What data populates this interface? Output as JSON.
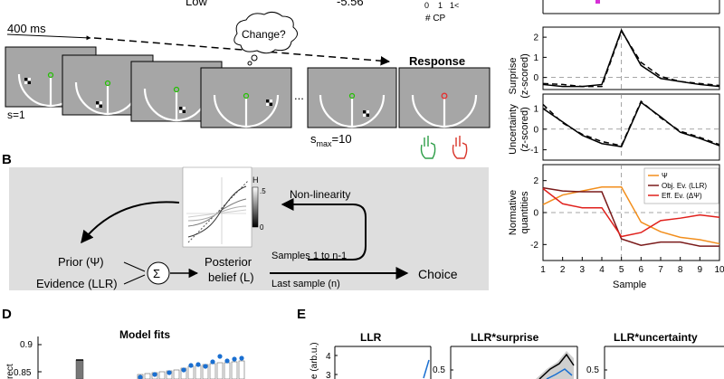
{
  "top_strip": {
    "low_label": "Low",
    "value_label": "-5.56",
    "cp_ticks": [
      "0",
      "1",
      "1<"
    ],
    "cp_label": "# CP"
  },
  "panel_a": {
    "time_label": "400 ms",
    "thought": "Change?",
    "response_label": "Response",
    "s_first": "s=1",
    "s_max_prefix": "s",
    "s_max_sub": "max",
    "s_max_suffix": "=10",
    "ellipsis": "...",
    "colors": {
      "gray_screen": "#a6a6a6",
      "green_hand": "#2e9e48",
      "red_hand": "#d9362b"
    }
  },
  "panel_b": {
    "label": "B",
    "colorbar_top": "H",
    "colorbar_tick_hi": ".5",
    "colorbar_tick_lo": "0",
    "nonlinearity": "Non-linearity",
    "prior": "Prior (Ψ)",
    "evidence": "Evidence (LLR)",
    "sum": "Σ",
    "posterior_line1": "Posterior",
    "posterior_line2": "belief (L)",
    "samples_label": "Samples 1 to n-1",
    "last_sample": "Last sample (n)",
    "choice": "Choice"
  },
  "panel_c": {
    "surprise_ylabel_1": "Surprise",
    "surprise_ylabel_2": "(z-scored)",
    "uncertainty_ylabel_1": "Uncertainty",
    "uncertainty_ylabel_2": "(z-scored)",
    "normative_ylabel_1": "Normative",
    "normative_ylabel_2": "quantities",
    "xlabel": "Sample",
    "legend": [
      "Ψ",
      "Obj. Ev. (LLR)",
      "Eff. Ev. (ΔΨ)"
    ]
  },
  "panel_d": {
    "label": "D",
    "title": "Model fits",
    "ylabel_fragment": "rect",
    "yticks": [
      "0.9",
      "0.85"
    ]
  },
  "panel_e": {
    "label": "E",
    "titles": [
      "LLR",
      "LLR*surprise",
      "LLR*uncertainty"
    ],
    "ylabel_fragment": "e (arb.u.)",
    "ticks_1": [
      "4",
      "3"
    ],
    "ticks_2": [
      "0.5"
    ],
    "ticks_3": [
      "0.5"
    ]
  },
  "chart_data": [
    {
      "type": "line",
      "title": "",
      "xlabel": "",
      "ylabel": "Surprise (z-scored)",
      "x": [
        1,
        2,
        3,
        4,
        5,
        6,
        7,
        8,
        9,
        10
      ],
      "xlim": [
        1,
        10
      ],
      "ylim": [
        -0.6,
        2.5
      ],
      "yticks": [
        0,
        1,
        2
      ],
      "series": [
        {
          "values": [
            -0.35,
            -0.45,
            -0.45,
            -0.35,
            2.35,
            0.6,
            -0.05,
            -0.2,
            -0.35,
            -0.45
          ],
          "style": "solid"
        },
        {
          "values": [
            -0.3,
            -0.35,
            -0.45,
            -0.45,
            2.3,
            0.75,
            0.05,
            -0.2,
            -0.3,
            -0.4
          ],
          "style": "dashed"
        }
      ]
    },
    {
      "type": "line",
      "title": "",
      "xlabel": "",
      "ylabel": "Uncertainty (z-scored)",
      "x": [
        1,
        2,
        3,
        4,
        5,
        6,
        7,
        8,
        9,
        10
      ],
      "xlim": [
        1,
        10
      ],
      "ylim": [
        -1.5,
        1.7
      ],
      "yticks": [
        -1,
        0,
        1
      ],
      "series": [
        {
          "values": [
            1.0,
            0.35,
            -0.3,
            -0.7,
            -0.85,
            1.3,
            0.6,
            -0.15,
            -0.45,
            -0.8
          ],
          "style": "solid"
        },
        {
          "values": [
            1.2,
            0.3,
            -0.25,
            -0.6,
            -0.8,
            1.35,
            0.55,
            -0.1,
            -0.4,
            -0.75
          ],
          "style": "dashed"
        }
      ]
    },
    {
      "type": "line",
      "title": "",
      "xlabel": "Sample",
      "ylabel": "Normative quantities",
      "x": [
        1,
        2,
        3,
        4,
        5,
        6,
        7,
        8,
        9,
        10
      ],
      "xlim": [
        1,
        10
      ],
      "ylim": [
        -3,
        3
      ],
      "yticks": [
        -2,
        0,
        2
      ],
      "xticks": [
        1,
        2,
        3,
        4,
        5,
        6,
        7,
        8,
        9,
        10
      ],
      "legend_position": "top-right",
      "series": [
        {
          "name": "Ψ",
          "color": "#f28e1c",
          "values": [
            0.5,
            1.1,
            1.35,
            1.6,
            1.6,
            -0.6,
            -1.2,
            -1.55,
            -1.7,
            -1.95
          ]
        },
        {
          "name": "Obj. Ev. (LLR)",
          "color": "#7a1a1a",
          "values": [
            1.55,
            1.35,
            1.3,
            1.3,
            -1.65,
            -2.05,
            -1.85,
            -1.85,
            -2.1,
            -2.1
          ]
        },
        {
          "name": "Eff. Ev. (ΔΨ)",
          "color": "#e0201c",
          "values": [
            1.5,
            0.55,
            0.3,
            0.3,
            -1.5,
            -1.25,
            -0.5,
            -0.35,
            -0.15,
            -0.3
          ]
        }
      ]
    }
  ]
}
